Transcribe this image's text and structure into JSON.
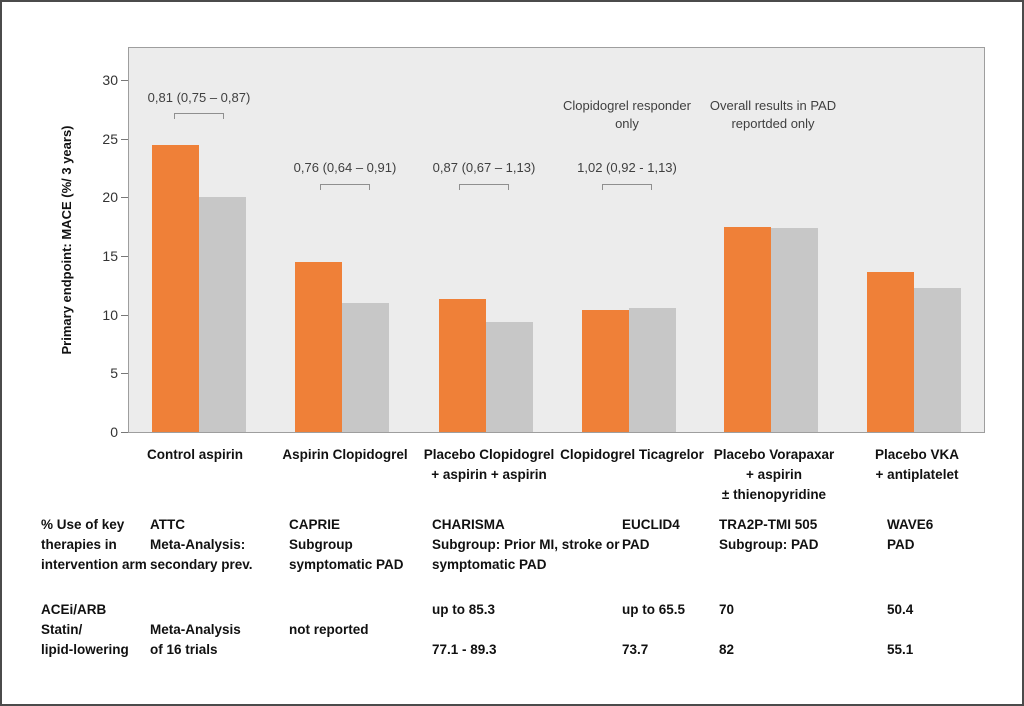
{
  "chart_data": {
    "type": "bar",
    "ylabel": "Primary endpoint: MACE (%/ 3 years)",
    "ylim": [
      0,
      30
    ],
    "yticks": [
      0,
      5,
      10,
      15,
      20,
      25,
      30
    ],
    "grid": false,
    "legend": "none",
    "plot_background": "#ececec",
    "categories": [
      "Control aspirin",
      "Aspirin Clopidogrel",
      "Placebo Clopidogrel + aspirin + aspirin",
      "Clopidogrel Ticagrelor",
      "Placebo Vorapaxar + aspirin ± thienopyridine",
      "Placebo VKA + antiplatelet"
    ],
    "category_lines": [
      [
        "Control aspirin"
      ],
      [
        "Aspirin Clopidogrel"
      ],
      [
        "Placebo Clopidogrel",
        "+ aspirin + aspirin"
      ],
      [
        "Clopidogrel Ticagrelor"
      ],
      [
        "Placebo Vorapaxar",
        "+ aspirin",
        "± thienopyridine"
      ],
      [
        "Placebo VKA",
        "+ antiplatelet"
      ]
    ],
    "series": [
      {
        "name": "comparator-arm",
        "color": "#ef8038",
        "values": [
          24.5,
          14.5,
          11.3,
          10.4,
          17.5,
          13.6
        ]
      },
      {
        "name": "intervention-arm",
        "color": "#c7c7c7",
        "values": [
          20.0,
          11.0,
          9.4,
          10.6,
          17.4,
          12.3
        ]
      }
    ],
    "annotations": [
      {
        "text": "0,81 (0,75 – 0,87)",
        "group": 0
      },
      {
        "text": "0,76 (0,64 – 0,91)",
        "group": 1
      },
      {
        "text": "0,87 (0,67 – 1,13)",
        "group": 2
      },
      {
        "text": "1,02 (0,92 - 1,13)",
        "group": 3
      }
    ],
    "notes": [
      {
        "lines": [
          "Clopidogrel responder",
          "only"
        ],
        "group": 3
      },
      {
        "lines": [
          "Overall results in PAD",
          "reportded only"
        ],
        "group": 4
      }
    ]
  },
  "table": {
    "row_header_lines": [
      "% Use of key",
      "therapies in",
      "intervention arm"
    ],
    "acei_label": "ACEi/ARB",
    "statin_label_lines": [
      "Statin/",
      "lipid-lowering"
    ],
    "columns": [
      {
        "trial_lines": [
          "ATTC",
          "Meta-Analysis:",
          "secondary prev."
        ],
        "acei": "",
        "statin_lines": [
          "Meta-Analysis",
          "of 16 trials"
        ],
        "statin_low": ""
      },
      {
        "trial_lines": [
          "CAPRIE",
          "Subgroup",
          "symptomatic PAD"
        ],
        "acei": "",
        "statin_lines": [
          "not reported"
        ],
        "statin_low": ""
      },
      {
        "trial_lines": [
          "CHARISMA",
          "Subgroup: Prior MI, stroke or",
          "symptomatic PAD"
        ],
        "acei": "up to 85.3",
        "statin_lines": [],
        "statin_low": "77.1 - 89.3"
      },
      {
        "trial_lines": [
          "EUCLID4",
          "PAD"
        ],
        "acei": "up to 65.5",
        "statin_lines": [],
        "statin_low": "73.7"
      },
      {
        "trial_lines": [
          "TRA2P-TMI 505",
          "Subgroup: PAD"
        ],
        "acei": "70",
        "statin_lines": [],
        "statin_low": "82"
      },
      {
        "trial_lines": [
          "WAVE6",
          "PAD"
        ],
        "acei": "50.4",
        "statin_lines": [],
        "statin_low": "55.1"
      }
    ]
  }
}
